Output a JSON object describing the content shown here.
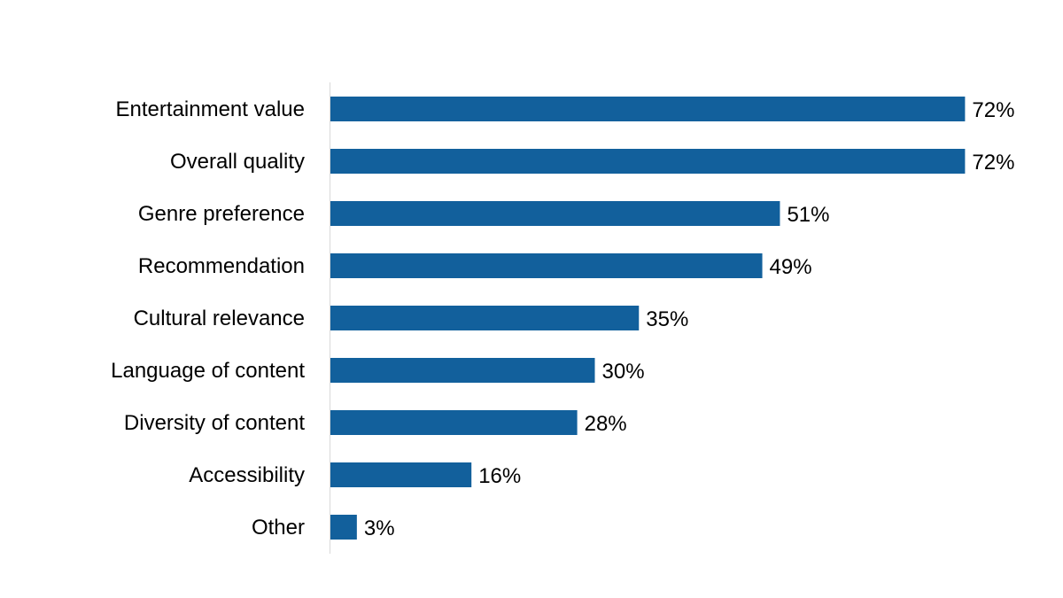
{
  "chart_data": {
    "type": "bar",
    "orientation": "horizontal",
    "categories": [
      "Entertainment value",
      "Overall quality",
      "Genre preference",
      "Recommendation",
      "Cultural relevance",
      "Language of content",
      "Diversity of content",
      "Accessibility",
      "Other"
    ],
    "values": [
      72,
      72,
      51,
      49,
      35,
      30,
      28,
      16,
      3
    ],
    "data_labels": [
      "72%",
      "72%",
      "51%",
      "49%",
      "35%",
      "30%",
      "28%",
      "16%",
      "3%"
    ],
    "unit": "%",
    "xlim": [
      0,
      100
    ],
    "grid": false,
    "legend": "none",
    "bar_color": "#12609C",
    "axis_color": "#D9D9D9"
  }
}
